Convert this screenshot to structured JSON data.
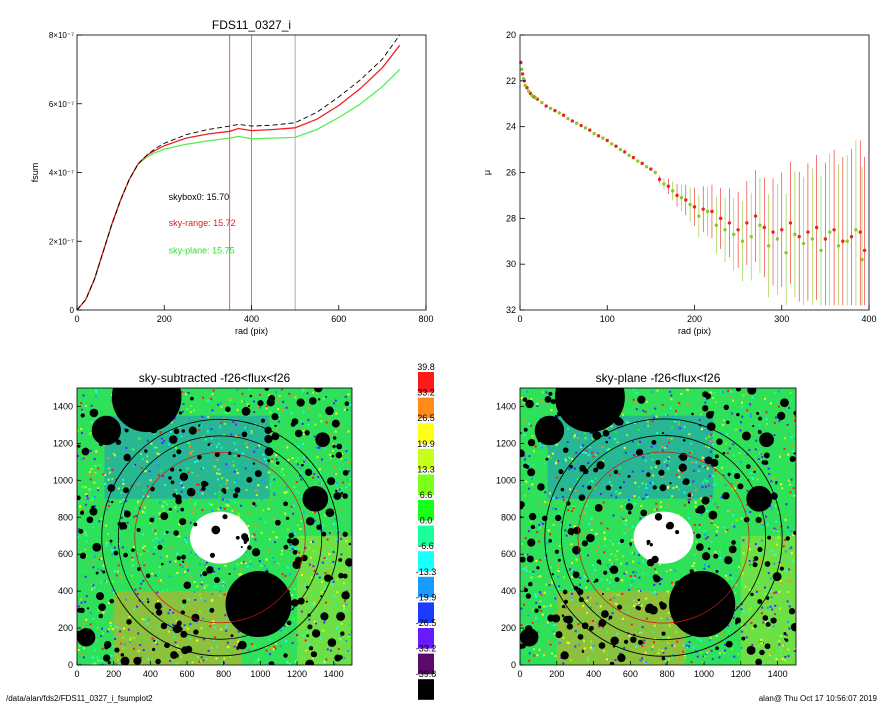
{
  "footer": {
    "path": "/data/alan/fds2/FDS11_0327_i_fsumplot2",
    "stamp": "alan@  Thu Oct 17 10:56:07 2019"
  },
  "chart_data": [
    {
      "type": "line",
      "title": "FDS11_0327_i",
      "xlabel": "rad (pix)",
      "ylabel": "fsum",
      "xlim": [
        0,
        800
      ],
      "ylim": [
        0,
        8e-07
      ],
      "xticks": [
        0,
        200,
        400,
        600,
        800
      ],
      "yticks": [
        {
          "v": 0,
          "label": "0"
        },
        {
          "v": 2e-07,
          "label": "2×10⁻⁷"
        },
        {
          "v": 4e-07,
          "label": "4×10⁻⁷"
        },
        {
          "v": 6e-07,
          "label": "6×10⁻⁷"
        },
        {
          "v": 8e-07,
          "label": "8×10⁻⁷"
        }
      ],
      "vlines": [
        {
          "x": 350,
          "color": "#ee3333"
        },
        {
          "x": 400,
          "color": "#777777"
        },
        {
          "x": 500,
          "color": "#999999"
        }
      ],
      "annotations": [
        {
          "text": "skybox0: 15.70",
          "x": 210,
          "y": 3.2e-07,
          "color": "#000000"
        },
        {
          "text": "sky-range: 15.72",
          "x": 210,
          "y": 2.45e-07,
          "color": "#e02020"
        },
        {
          "text": "sky-plane: 15.75",
          "x": 210,
          "y": 1.65e-07,
          "color": "#33dd33"
        }
      ],
      "series": [
        {
          "color": "#000000",
          "dash": true,
          "x": [
            0,
            20,
            40,
            60,
            80,
            100,
            120,
            140,
            160,
            180,
            200,
            250,
            300,
            350,
            370,
            400,
            450,
            500,
            550,
            600,
            650,
            700,
            740
          ],
          "y": [
            0,
            3e-08,
            9e-08,
            1.7e-07,
            2.5e-07,
            3.2e-07,
            3.8e-07,
            4.25e-07,
            4.5e-07,
            4.7e-07,
            4.85e-07,
            5.1e-07,
            5.25e-07,
            5.35e-07,
            5.4e-07,
            5.35e-07,
            5.38e-07,
            5.45e-07,
            5.75e-07,
            6.2e-07,
            6.7e-07,
            7.3e-07,
            8e-07
          ]
        },
        {
          "color": "#ee2222",
          "dash": false,
          "x": [
            0,
            20,
            40,
            60,
            80,
            100,
            120,
            140,
            160,
            180,
            200,
            250,
            300,
            350,
            370,
            400,
            450,
            500,
            550,
            600,
            650,
            700,
            740
          ],
          "y": [
            0,
            3e-08,
            9e-08,
            1.7e-07,
            2.5e-07,
            3.2e-07,
            3.8e-07,
            4.25e-07,
            4.5e-07,
            4.65e-07,
            4.78e-07,
            5e-07,
            5.12e-07,
            5.2e-07,
            5.28e-07,
            5.22e-07,
            5.25e-07,
            5.3e-07,
            5.55e-07,
            5.95e-07,
            6.45e-07,
            7.05e-07,
            7.7e-07
          ]
        },
        {
          "color": "#55ee55",
          "dash": false,
          "x": [
            0,
            20,
            40,
            60,
            80,
            100,
            120,
            140,
            160,
            180,
            200,
            250,
            300,
            350,
            370,
            400,
            450,
            500,
            550,
            600,
            650,
            700,
            740
          ],
          "y": [
            0,
            3e-08,
            9e-08,
            1.7e-07,
            2.5e-07,
            3.2e-07,
            3.8e-07,
            4.25e-07,
            4.45e-07,
            4.58e-07,
            4.68e-07,
            4.82e-07,
            4.92e-07,
            5e-07,
            5.05e-07,
            4.98e-07,
            5e-07,
            5.02e-07,
            5.25e-07,
            5.6e-07,
            6e-07,
            6.5e-07,
            7e-07
          ]
        }
      ]
    },
    {
      "type": "scatter",
      "title": "",
      "xlabel": "rad (pix)",
      "ylabel": "μ",
      "xlim": [
        0,
        400
      ],
      "ylim": [
        32,
        20
      ],
      "xticks": [
        0,
        100,
        200,
        300,
        400
      ],
      "yticks": [
        20,
        22,
        24,
        26,
        28,
        30,
        32
      ],
      "series": [
        {
          "color": "#ee2222",
          "x": [
            1,
            3,
            5,
            8,
            12,
            16,
            20,
            30,
            40,
            50,
            60,
            70,
            80,
            90,
            100,
            110,
            120,
            130,
            140,
            150,
            160,
            170,
            180,
            190,
            200,
            210,
            220,
            230,
            240,
            250,
            260,
            270,
            280,
            290,
            300,
            310,
            320,
            330,
            340,
            350,
            360,
            370,
            380,
            390,
            395
          ],
          "y": [
            21.2,
            21.7,
            22.0,
            22.3,
            22.55,
            22.7,
            22.8,
            23.1,
            23.3,
            23.5,
            23.75,
            23.95,
            24.15,
            24.4,
            24.6,
            24.85,
            25.1,
            25.35,
            25.6,
            25.85,
            26.3,
            26.6,
            27.0,
            27.2,
            27.5,
            27.6,
            27.7,
            28.0,
            28.2,
            28.5,
            28.2,
            27.9,
            28.4,
            28.6,
            28.5,
            28.2,
            28.8,
            28.6,
            28.4,
            28.9,
            28.5,
            29.0,
            28.8,
            28.6,
            29.4
          ]
        },
        {
          "color": "#88cc22",
          "x": [
            2,
            4,
            6,
            10,
            14,
            18,
            25,
            35,
            45,
            55,
            65,
            75,
            85,
            95,
            105,
            115,
            125,
            135,
            145,
            155,
            165,
            175,
            185,
            195,
            205,
            215,
            225,
            235,
            245,
            255,
            265,
            275,
            285,
            295,
            305,
            315,
            325,
            335,
            345,
            355,
            365,
            375,
            385,
            392
          ],
          "y": [
            21.5,
            21.9,
            22.2,
            22.45,
            22.65,
            22.75,
            22.95,
            23.2,
            23.4,
            23.65,
            23.85,
            24.05,
            24.3,
            24.5,
            24.75,
            25.0,
            25.25,
            25.5,
            25.75,
            26.0,
            26.5,
            26.8,
            27.1,
            27.4,
            27.9,
            27.7,
            28.3,
            28.5,
            28.7,
            29.0,
            28.8,
            28.3,
            29.2,
            28.9,
            29.5,
            28.7,
            29.1,
            28.9,
            29.4,
            28.6,
            29.2,
            29.0,
            28.5,
            29.8
          ]
        }
      ]
    },
    {
      "type": "heatmap",
      "title": "sky-subtracted -f26<flux<f26",
      "xlim": [
        0,
        1500
      ],
      "ylim": [
        0,
        1500
      ],
      "xticks": [
        0,
        200,
        400,
        600,
        800,
        1000,
        1200,
        1400
      ],
      "yticks": [
        0,
        200,
        400,
        600,
        800,
        1000,
        1200,
        1400
      ]
    },
    {
      "type": "heatmap",
      "title": "sky-plane -f26<flux<f26",
      "xlim": [
        0,
        1500
      ],
      "ylim": [
        0,
        1500
      ],
      "xticks": [
        0,
        200,
        400,
        600,
        800,
        1000,
        1200,
        1400
      ],
      "yticks": [
        0,
        200,
        400,
        600,
        800,
        1000,
        1200,
        1400
      ]
    }
  ],
  "colorbar": {
    "levels": [
      {
        "label": "39.8",
        "color": "#ff1a1a"
      },
      {
        "label": "33.2",
        "color": "#ff8c1a"
      },
      {
        "label": "26.5",
        "color": "#ffff1a"
      },
      {
        "label": "19.9",
        "color": "#c8ff1a"
      },
      {
        "label": "13.3",
        "color": "#7cff1a"
      },
      {
        "label": "6.6",
        "color": "#1aff1a"
      },
      {
        "label": "0.0",
        "color": "#1aff9c"
      },
      {
        "label": "-6.6",
        "color": "#1affff"
      },
      {
        "label": "-13.3",
        "color": "#1a9cff"
      },
      {
        "label": "-19.9",
        "color": "#1a3cff"
      },
      {
        "label": "-26.5",
        "color": "#6a1aff"
      },
      {
        "label": "-33.2",
        "color": "#5a0a6a"
      },
      {
        "label": "-39.8",
        "color": "#000000"
      }
    ]
  }
}
